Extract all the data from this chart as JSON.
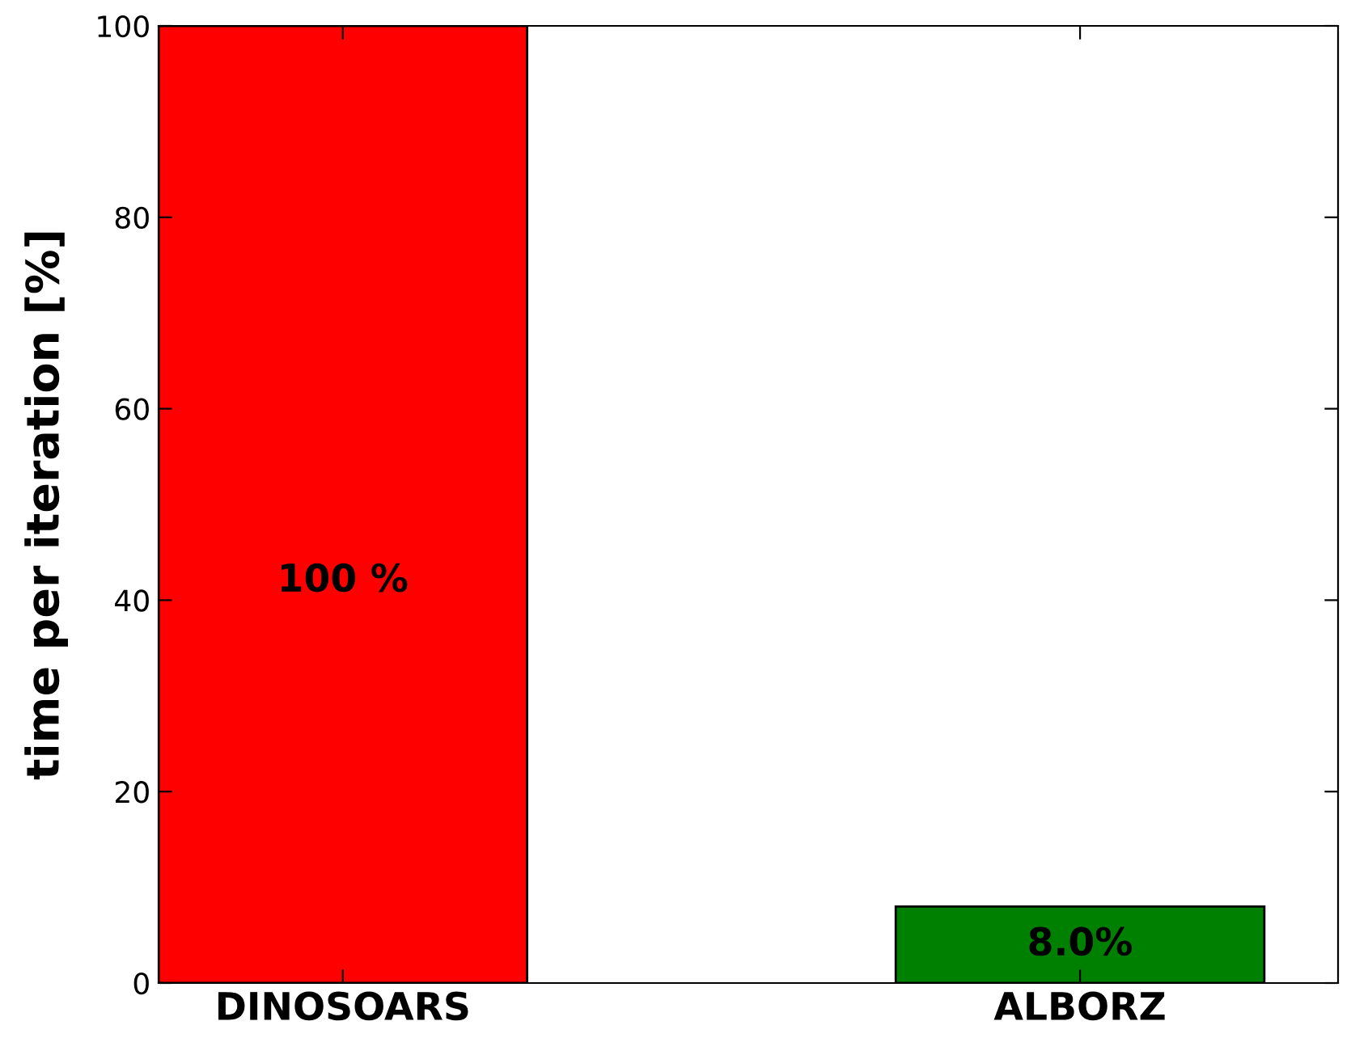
{
  "chart_data": {
    "type": "bar",
    "ylabel": "time per iteration [%]",
    "categories": [
      "DINOSOARS",
      "ALBORZ"
    ],
    "values": [
      100,
      8.0
    ],
    "colors": [
      "#ff0000",
      "#008000"
    ],
    "value_labels": [
      "100 %",
      "8.0%"
    ],
    "ylim": [
      0,
      100
    ],
    "yticks": [
      0,
      20,
      40,
      60,
      80,
      100
    ],
    "grid": false,
    "legend": false
  }
}
